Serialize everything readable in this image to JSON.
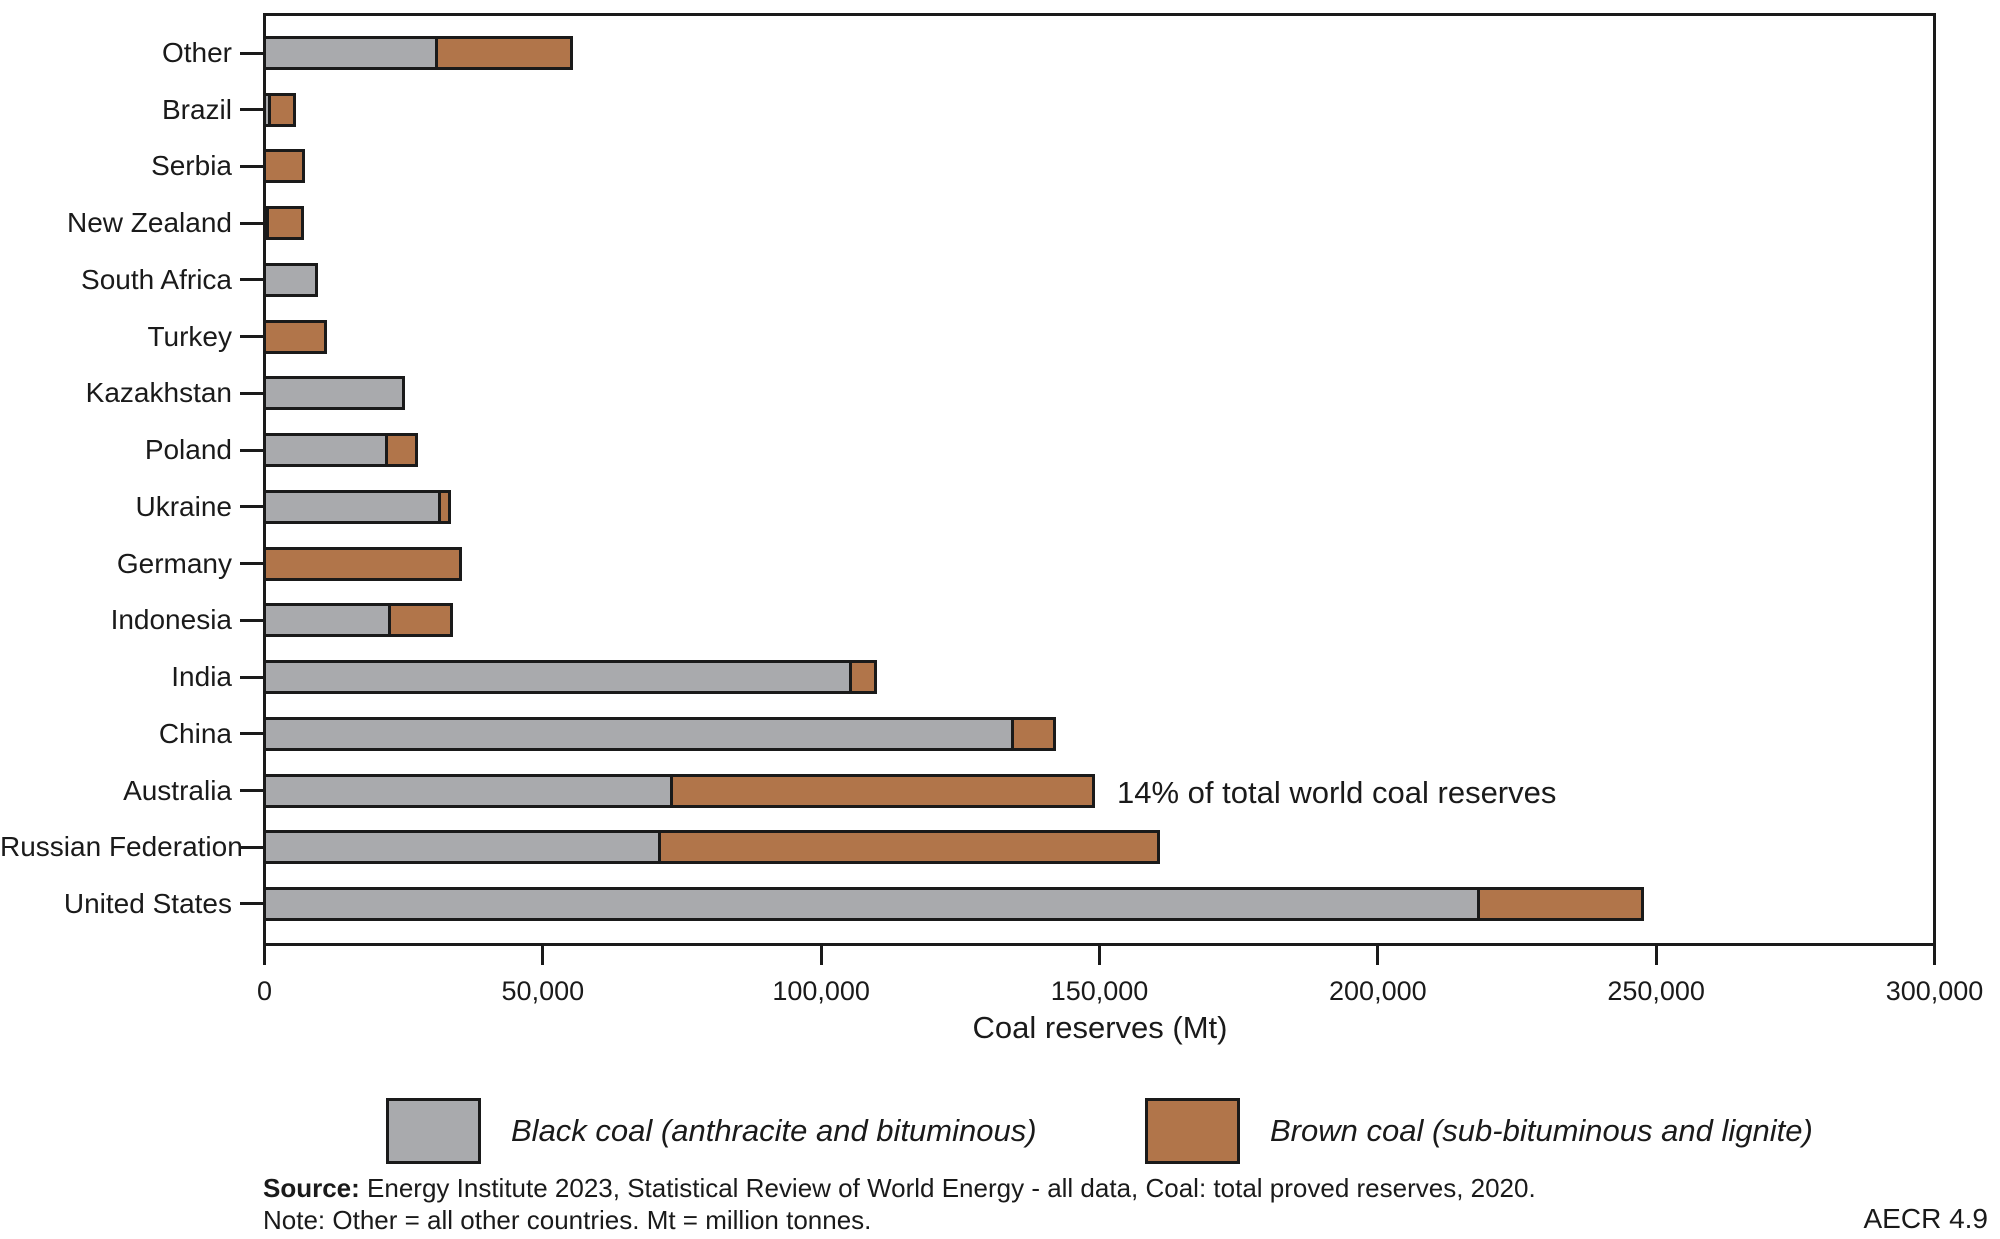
{
  "chart_data": {
    "type": "bar",
    "orientation": "horizontal",
    "stacked": true,
    "title": "",
    "xlabel": "Coal reserves (Mt)",
    "ylabel": "",
    "xlim": [
      0,
      300000
    ],
    "grid": false,
    "legend_position": "bottom",
    "categories_top_to_bottom": [
      "Other",
      "Brazil",
      "Serbia",
      "New Zealand",
      "South Africa",
      "Turkey",
      "Kazakhstan",
      "Poland",
      "Ukraine",
      "Germany",
      "Indonesia",
      "India",
      "China",
      "Australia",
      "Russian Federation",
      "United States"
    ],
    "series": [
      {
        "name": "Black coal (anthracite and bituminous)",
        "color": "#a9aaad",
        "values": [
          31500,
          1500,
          0,
          800,
          9900,
          0,
          25600,
          22500,
          32000,
          0,
          23100,
          106000,
          135100,
          73700,
          71700,
          219000
        ]
      },
      {
        "name": "Brown coal (sub-bituminous and lignite)",
        "color": "#b1754a",
        "values": [
          24800,
          5100,
          7500,
          6800,
          0,
          11600,
          0,
          5900,
          2300,
          35900,
          11700,
          5100,
          8100,
          76500,
          90400,
          30000
        ]
      }
    ],
    "xticks": [
      0,
      50000,
      100000,
      150000,
      200000,
      250000,
      300000
    ],
    "xtick_labels": [
      "0",
      "50,000",
      "100,000",
      "150,000",
      "200,000",
      "250,000",
      "300,000"
    ],
    "annotation": {
      "text": "14% of total world coal reserves",
      "category": "Australia"
    },
    "bar_border_color": "#1a1a1a"
  },
  "footer": {
    "source_label": "Source:",
    "source_text": " Energy Institute 2023, Statistical Review of World Energy - all data, Coal: total proved reserves, 2020.",
    "note_text": "Note: Other = all other countries. Mt = million tonnes.",
    "figure_ref": "AECR 4.9"
  }
}
